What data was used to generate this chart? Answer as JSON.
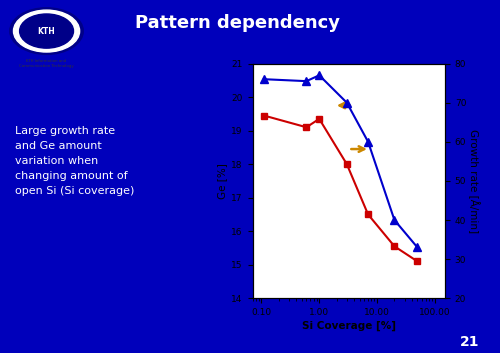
{
  "title": "Pattern dependency",
  "slide_bg": "#0000BB",
  "header_bg": "#0000CC",
  "text_color": "#FFFFFF",
  "slide_text": "Large growth rate\nand Ge amount\nvariation when\nchanging amount of\nopen Si (Si coverage)",
  "plot_bg": "#FFFFFF",
  "x_label": "Si Coverage [%]",
  "y_left_label": "Ge [%]",
  "y_right_label": "Growth rate [Å/min]",
  "x_data": [
    0.11,
    0.6,
    1.0,
    3.0,
    7.0,
    20.0,
    50.0
  ],
  "ge_data": [
    19.45,
    19.1,
    19.35,
    18.0,
    16.5,
    15.55,
    15.1
  ],
  "gr_data": [
    76.0,
    75.5,
    77.0,
    70.0,
    60.0,
    40.0,
    33.0
  ],
  "ge_color": "#CC0000",
  "gr_color": "#0000CC",
  "ylim_left": [
    14,
    21
  ],
  "ylim_right": [
    20,
    80
  ],
  "xlim": [
    0.07,
    150.0
  ],
  "arrow_color": "#CC8800",
  "page_number": "21"
}
